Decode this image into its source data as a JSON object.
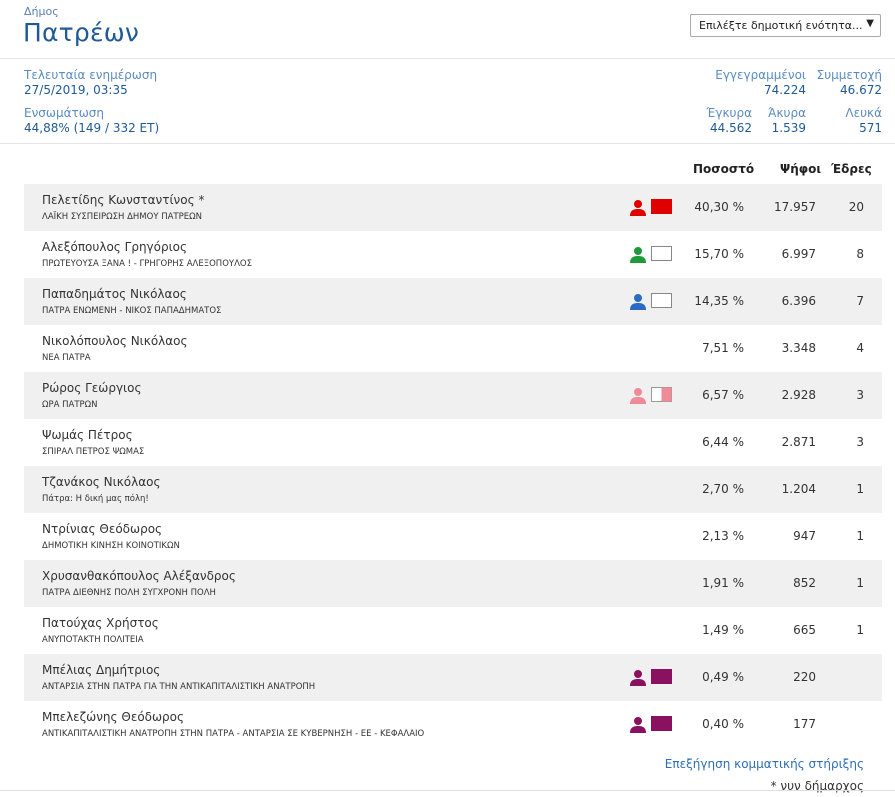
{
  "header": {
    "muni_label": "Δήμος",
    "muni_name": "Πατρέων",
    "select_placeholder": "Επιλέξτε δημοτική ενότητα..."
  },
  "info": {
    "last_update_label": "Τελευταία ενημέρωση",
    "last_update_value": "27/5/2019, 03:35",
    "integration_label": "Ενσωμάτωση",
    "integration_value": "44,88% (149 / 332 ΕΤ)",
    "registered_label": "Εγγεγραμμένοι",
    "registered_value": "74.224",
    "turnout_label": "Συμμετοχή",
    "turnout_value": "46.672",
    "valid_label": "Έγκυρα",
    "valid_value": "44.562",
    "invalid_label": "Άκυρα",
    "invalid_value": "1.539",
    "blank_label": "Λευκά",
    "blank_value": "571"
  },
  "table": {
    "headers": {
      "pct": "Ποσοστό",
      "votes": "Ψήφοι",
      "seats": "Έδρες"
    },
    "rows": [
      {
        "name": "Πελετίδης Κωνσταντίνος *",
        "party": "ΛΑΪΚΗ ΣΥΣΠΕΙΡΩΣΗ ΔΗΜΟΥ ΠΑΤΡΕΩΝ",
        "pct": "40,30 %",
        "votes": "17.957",
        "seats": "20",
        "icon": "person-icon",
        "color": "#e00000",
        "flag": "solid"
      },
      {
        "name": "Αλεξόπουλος Γρηγόριος",
        "party": "ΠΡΩΤΕΥΟΥΣΑ ΞΑΝΑ ! - ΓΡΗΓΟΡΗΣ ΑΛΕΞΟΠΟΥΛΟΣ",
        "pct": "15,70 %",
        "votes": "6.997",
        "seats": "8",
        "icon": "person-icon",
        "color": "#1e9a3a",
        "flag": "empty"
      },
      {
        "name": "Παπαδημάτος Νικόλαος",
        "party": "ΠΑΤΡΑ ΕΝΩΜΕΝΗ - ΝΙΚΟΣ ΠΑΠΑΔΗΜΑΤΟΣ",
        "pct": "14,35 %",
        "votes": "6.396",
        "seats": "7",
        "icon": "person-icon",
        "color": "#2b6bc4",
        "flag": "empty"
      },
      {
        "name": "Νικολόπουλος Νικόλαος",
        "party": "ΝΕΑ ΠΑΤΡΑ",
        "pct": "7,51 %",
        "votes": "3.348",
        "seats": "4"
      },
      {
        "name": "Ρώρος Γεώργιος",
        "party": "ΩΡΑ ΠΑΤΡΩΝ",
        "pct": "6,57 %",
        "votes": "2.928",
        "seats": "3",
        "icon": "person-icon",
        "color": "#f08a96",
        "flag": "half"
      },
      {
        "name": "Ψωμάς Πέτρος",
        "party": "ΣΠΙΡΑΛ ΠΕΤΡΟΣ ΨΩΜΑΣ",
        "pct": "6,44 %",
        "votes": "2.871",
        "seats": "3"
      },
      {
        "name": "Τζανάκος Νικόλαος",
        "party": "Πάτρα: Η δική μας πόλη!",
        "pct": "2,70 %",
        "votes": "1.204",
        "seats": "1"
      },
      {
        "name": "Ντρίνιας Θεόδωρος",
        "party": "ΔΗΜΟΤΙΚΗ ΚΙΝΗΣΗ ΚΟΙΝΟΤΙΚΩΝ",
        "pct": "2,13 %",
        "votes": "947",
        "seats": "1"
      },
      {
        "name": "Χρυσανθακόπουλος Αλέξανδρος",
        "party": "ΠΑΤΡΑ ΔΙΕΘΝΗΣ ΠΟΛΗ ΣΥΓΧΡΟΝΗ ΠΟΛΗ",
        "pct": "1,91 %",
        "votes": "852",
        "seats": "1"
      },
      {
        "name": "Πατούχας Χρήστος",
        "party": "ΑΝΥΠΟΤΑΚΤΗ ΠΟΛΙΤΕΙΑ",
        "pct": "1,49 %",
        "votes": "665",
        "seats": "1"
      },
      {
        "name": "Μπέλιας Δημήτριος",
        "party": "ΑΝΤΑΡΣΙΑ ΣΤΗΝ ΠΑΤΡΑ ΓΙΑ ΤΗΝ ΑΝΤΙΚΑΠΙΤΑΛΙΣΤΙΚΗ ΑΝΑΤΡΟΠΗ",
        "pct": "0,49 %",
        "votes": "220",
        "seats": "",
        "icon": "person-icon",
        "color": "#8a1060",
        "flag": "solid"
      },
      {
        "name": "Μπελεζώνης Θεόδωρος",
        "party": "ΑΝΤΙΚΑΠΙΤΑΛΙΣΤΙΚΗ ΑΝΑΤΡΟΠΗ ΣΤΗΝ ΠΑΤΡΑ - ΑΝΤΑΡΣΙΑ ΣΕ ΚΥΒΕΡΝΗΣΗ - ΕΕ - ΚΕΦΑΛΑΙΟ",
        "pct": "0,40 %",
        "votes": "177",
        "seats": "",
        "icon": "person-icon",
        "color": "#8a1060",
        "flag": "solid"
      }
    ]
  },
  "footer": {
    "link": "Επεξήγηση κομματικής στήριξης",
    "note": "* νυν δήμαρχος"
  }
}
